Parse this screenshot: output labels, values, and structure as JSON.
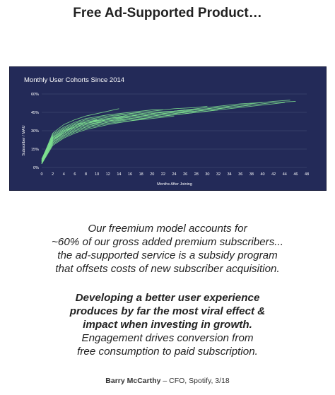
{
  "page": {
    "title": "Free Ad-Supported Product…",
    "quote_intro": [
      "Our freemium model accounts for",
      "~60% of our gross added premium subscribers...",
      "the ad-supported service is a subsidy program",
      "that offsets costs of new subscriber acquisition."
    ],
    "quote_emphasis": [
      "Developing a better user experience",
      "produces by far the most viral effect &",
      "impact when investing in growth."
    ],
    "quote_follow": [
      "Engagement drives conversion from",
      "free consumption to paid subscription."
    ],
    "attribution_name": "Barry McCarthy",
    "attribution_rest": " – CFO, Spotify, 3/18"
  },
  "colors": {
    "chart_background": "#232a58",
    "series_line": "#7ee08f",
    "axis_text": "#ffffff"
  },
  "chart_data": {
    "type": "line",
    "title": "Monthly User Cohorts Since 2014",
    "xlabel": "Months After Joining",
    "ylabel": "Subscriber / MAU",
    "x_ticks": [
      "0",
      "2",
      "4",
      "6",
      "8",
      "10",
      "12",
      "14",
      "16",
      "18",
      "20",
      "22",
      "24",
      "26",
      "28",
      "30",
      "32",
      "34",
      "36",
      "38",
      "40",
      "42",
      "44",
      "46",
      "48"
    ],
    "y_ticks": [
      "0%",
      "15%",
      "30%",
      "45%",
      "60%"
    ],
    "xlim": [
      0,
      48
    ],
    "ylim": [
      0,
      60
    ],
    "y_unit": "%",
    "grid": "horizontal",
    "series": [
      {
        "x": [
          0,
          2,
          4,
          6,
          8,
          12,
          16,
          20,
          24,
          30,
          36,
          42,
          46
        ],
        "values": [
          4,
          22,
          28,
          32,
          35,
          38,
          40,
          42,
          44,
          47,
          50,
          53,
          54
        ]
      },
      {
        "x": [
          0,
          2,
          4,
          6,
          8,
          12,
          16,
          20,
          24,
          30,
          36,
          42,
          45
        ],
        "values": [
          5,
          24,
          30,
          33,
          36,
          39,
          41,
          43,
          45,
          48,
          51,
          54,
          55
        ]
      },
      {
        "x": [
          0,
          2,
          4,
          6,
          8,
          12,
          16,
          20,
          24,
          30,
          36,
          42,
          44
        ],
        "values": [
          3,
          20,
          26,
          30,
          33,
          37,
          39,
          41,
          43,
          46,
          49,
          52,
          53
        ]
      },
      {
        "x": [
          0,
          2,
          4,
          6,
          8,
          12,
          16,
          20,
          24,
          30,
          36,
          40
        ],
        "values": [
          6,
          25,
          31,
          35,
          37,
          40,
          42,
          44,
          46,
          49,
          52,
          53
        ]
      },
      {
        "x": [
          0,
          2,
          4,
          6,
          8,
          12,
          16,
          20,
          24,
          30,
          36,
          38
        ],
        "values": [
          4,
          21,
          27,
          31,
          34,
          38,
          40,
          42,
          44,
          47,
          50,
          51
        ]
      },
      {
        "x": [
          0,
          2,
          4,
          6,
          8,
          12,
          16,
          20,
          24,
          30,
          34
        ],
        "values": [
          5,
          23,
          29,
          33,
          36,
          39,
          42,
          44,
          46,
          48,
          50
        ]
      },
      {
        "x": [
          0,
          2,
          4,
          6,
          8,
          12,
          16,
          20,
          24,
          30,
          32
        ],
        "values": [
          3,
          19,
          25,
          29,
          32,
          36,
          38,
          41,
          43,
          46,
          47
        ]
      },
      {
        "x": [
          0,
          2,
          4,
          6,
          8,
          12,
          16,
          20,
          24,
          28,
          30
        ],
        "values": [
          7,
          26,
          32,
          36,
          39,
          42,
          44,
          46,
          48,
          49,
          50
        ]
      },
      {
        "x": [
          0,
          2,
          4,
          6,
          8,
          12,
          16,
          20,
          24,
          28
        ],
        "values": [
          4,
          22,
          29,
          33,
          36,
          39,
          41,
          43,
          45,
          46
        ]
      },
      {
        "x": [
          0,
          2,
          4,
          6,
          8,
          12,
          16,
          20,
          24,
          26
        ],
        "values": [
          5,
          24,
          30,
          34,
          37,
          40,
          43,
          45,
          46,
          47
        ]
      },
      {
        "x": [
          0,
          2,
          4,
          6,
          8,
          12,
          16,
          20,
          24
        ],
        "values": [
          3,
          18,
          24,
          28,
          31,
          35,
          38,
          40,
          42
        ]
      },
      {
        "x": [
          0,
          2,
          4,
          6,
          8,
          12,
          16,
          20,
          22
        ],
        "values": [
          6,
          27,
          33,
          37,
          40,
          43,
          45,
          47,
          47
        ]
      },
      {
        "x": [
          0,
          2,
          4,
          6,
          8,
          12,
          16,
          20
        ],
        "values": [
          4,
          23,
          29,
          33,
          36,
          40,
          42,
          44
        ]
      },
      {
        "x": [
          0,
          2,
          4,
          6,
          8,
          12,
          16,
          18
        ],
        "values": [
          5,
          25,
          31,
          35,
          38,
          41,
          44,
          45
        ]
      },
      {
        "x": [
          0,
          2,
          4,
          6,
          8,
          12,
          16
        ],
        "values": [
          3,
          20,
          26,
          30,
          33,
          37,
          40
        ]
      },
      {
        "x": [
          0,
          2,
          4,
          6,
          8,
          12,
          14
        ],
        "values": [
          6,
          28,
          35,
          39,
          42,
          46,
          48
        ]
      },
      {
        "x": [
          0,
          2,
          4,
          6,
          8,
          12
        ],
        "values": [
          4,
          22,
          28,
          32,
          35,
          38
        ]
      },
      {
        "x": [
          0,
          2,
          4,
          6,
          8,
          10
        ],
        "values": [
          5,
          24,
          30,
          34,
          37,
          39
        ]
      }
    ]
  }
}
